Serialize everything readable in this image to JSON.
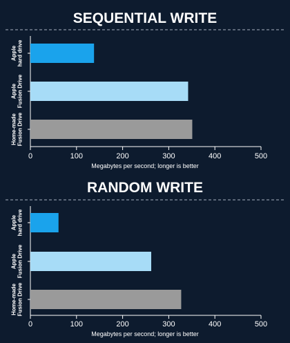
{
  "chart_data": [
    {
      "type": "bar",
      "orientation": "horizontal",
      "title": "SEQUENTIAL WRITE",
      "categories": [
        "Apple hard drive",
        "Apple Fusion Drive",
        "Home-made Fusion Drive"
      ],
      "category_lines": [
        [
          "Apple",
          "hard drive"
        ],
        [
          "Apple",
          "Fusion Drive"
        ],
        [
          "Home-made",
          "Fusion Drive"
        ]
      ],
      "values": [
        138,
        342,
        351
      ],
      "colors": [
        "#1aa3ec",
        "#a7dcf7",
        "#9a9a9a"
      ],
      "xlabel": "Megabytes per second; longer is better",
      "ylabel": "",
      "xlim": [
        0,
        500
      ],
      "xticks": [
        0,
        100,
        200,
        300,
        400,
        500
      ],
      "grid": false,
      "legend": "none"
    },
    {
      "type": "bar",
      "orientation": "horizontal",
      "title": "RANDOM WRITE",
      "categories": [
        "Apple hard drive",
        "Apple Fusion Drive",
        "Home-made Fusion Drive"
      ],
      "category_lines": [
        [
          "Apple",
          "hard drive"
        ],
        [
          "Apple",
          "Fusion Drive"
        ],
        [
          "Home-made",
          "Fusion Drive"
        ]
      ],
      "values": [
        61,
        262,
        327
      ],
      "colors": [
        "#1aa3ec",
        "#a7dcf7",
        "#9a9a9a"
      ],
      "xlabel": "Megabytes per second; longer is better",
      "ylabel": "",
      "xlim": [
        0,
        500
      ],
      "xticks": [
        0,
        100,
        200,
        300,
        400,
        500
      ],
      "grid": false,
      "legend": "none"
    }
  ],
  "colors": {
    "background": "#0d1b2e",
    "text": "#ffffff",
    "divider": "#8a93a3"
  }
}
